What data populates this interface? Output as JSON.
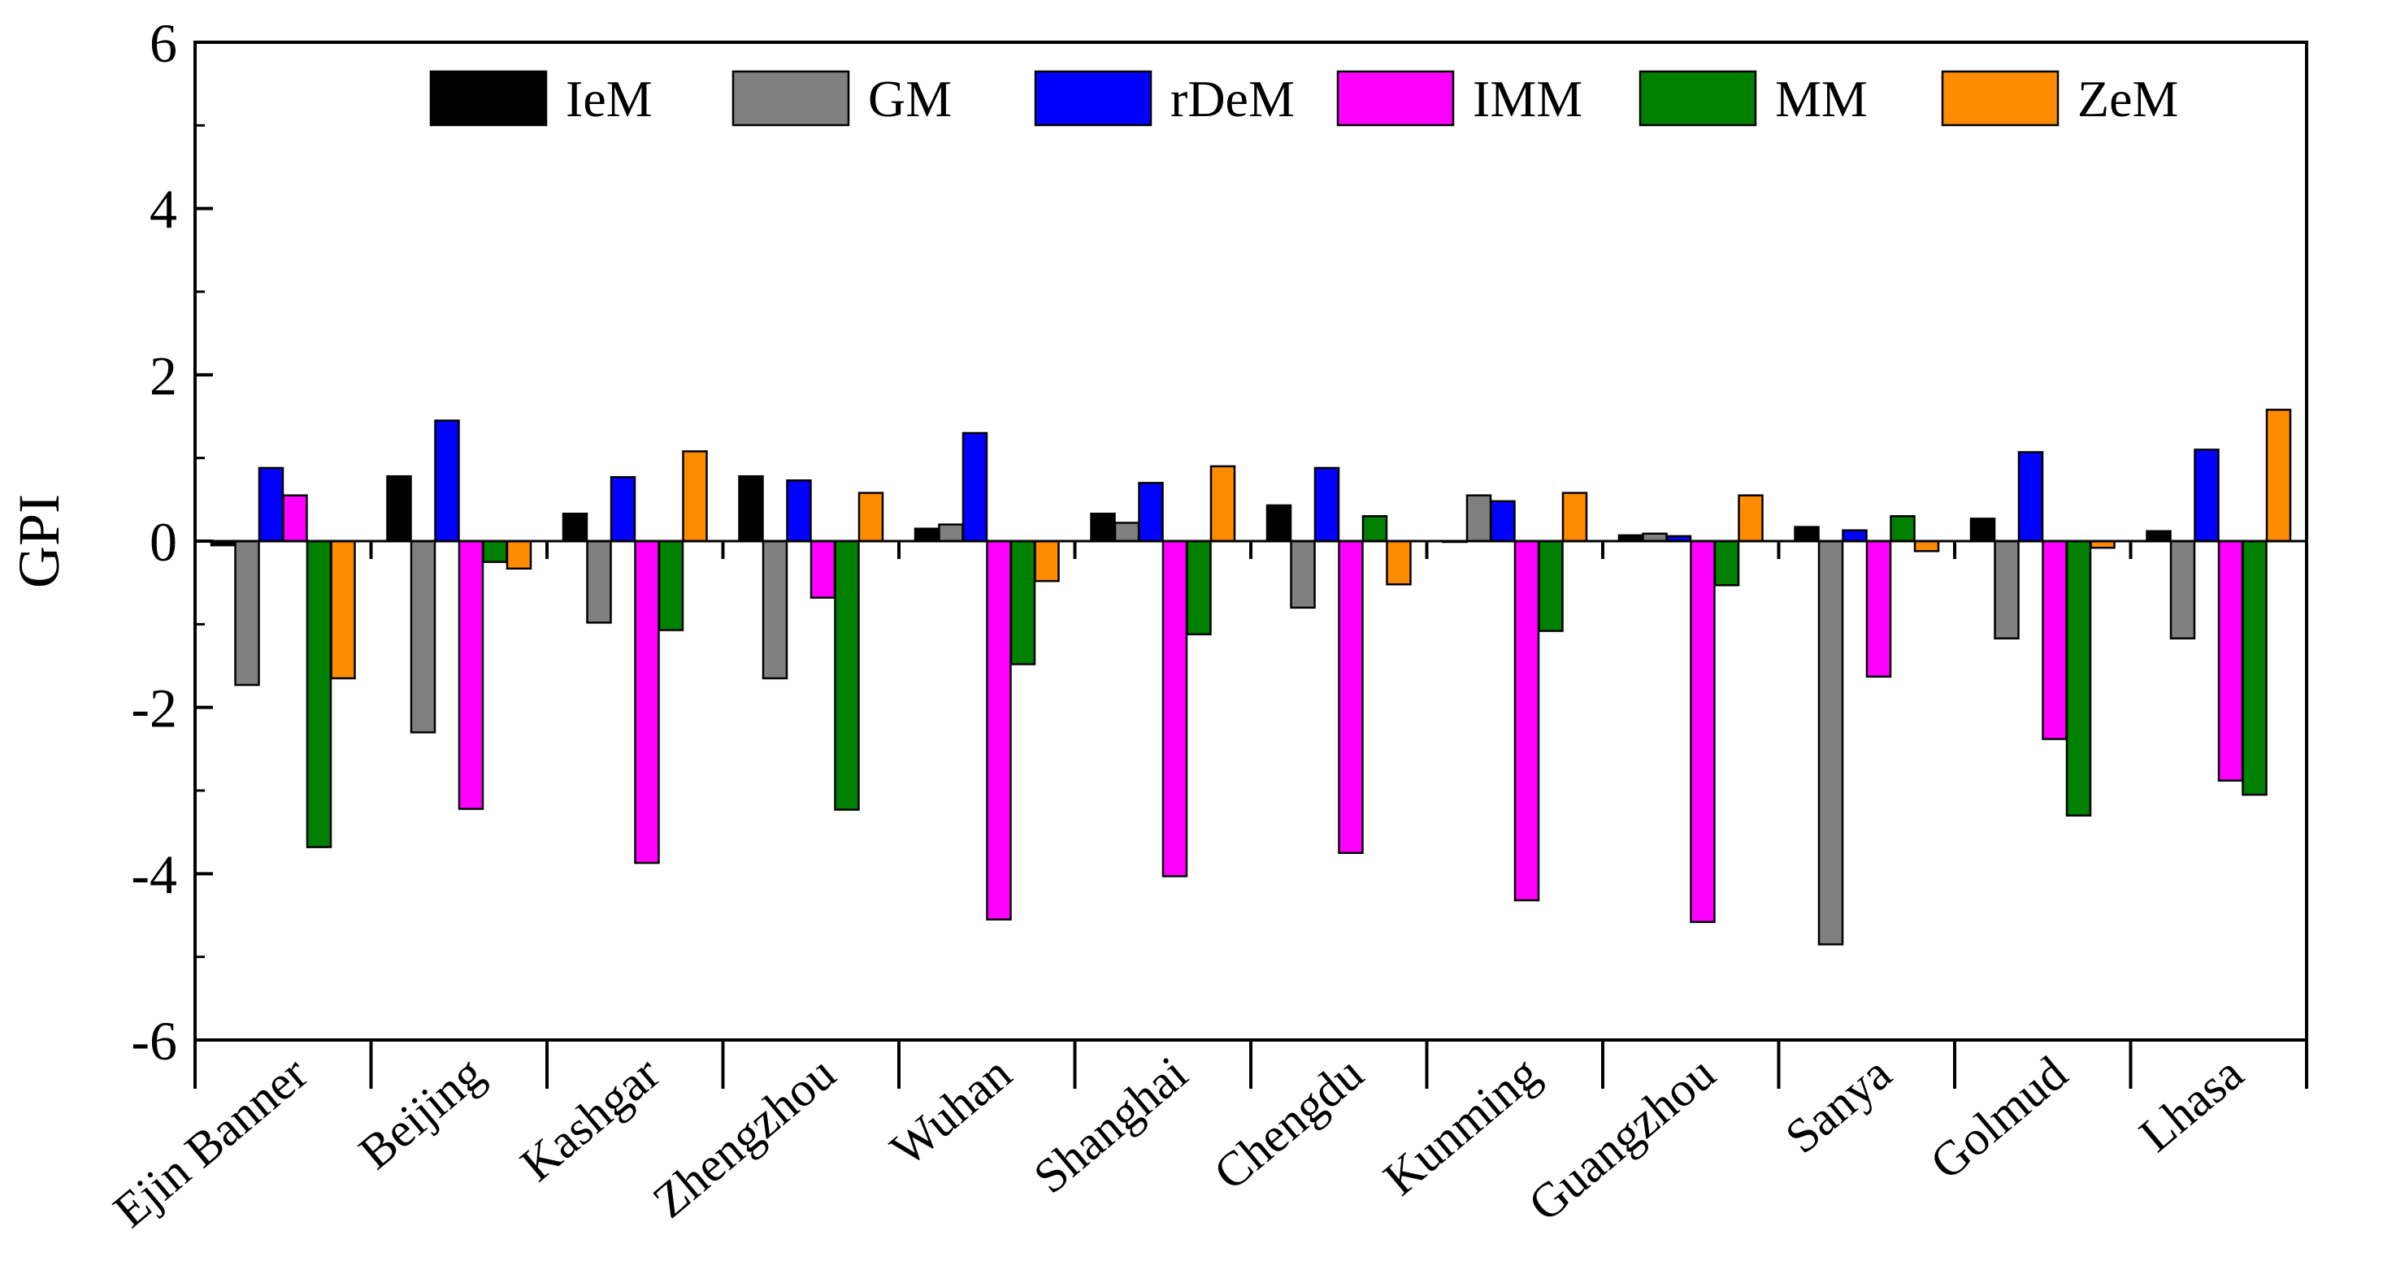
{
  "chart_data": {
    "type": "bar",
    "ylabel": "GPI",
    "ylim": [
      -6,
      6
    ],
    "yticks": [
      -6,
      -4,
      -2,
      0,
      2,
      4,
      6
    ],
    "ytick_labels": [
      "-6",
      "-4",
      "-2",
      "0",
      "2",
      "4",
      "6"
    ],
    "grid": false,
    "legend_position": "top",
    "categories": [
      "Ejin Banner",
      "Beijing",
      "Kashgar",
      "Zhengzhou",
      "Wuhan",
      "Shanghai",
      "Chengdu",
      "Kunming",
      "Guangzhou",
      "Sanya",
      "Golmud",
      "Lhasa"
    ],
    "series": [
      {
        "name": "IeM",
        "color": "#000000",
        "values": [
          -0.05,
          0.78,
          0.33,
          0.78,
          0.15,
          0.33,
          0.43,
          0.0,
          0.07,
          0.17,
          0.27,
          0.12
        ]
      },
      {
        "name": "GM",
        "color": "#808080",
        "values": [
          -1.73,
          -2.3,
          -0.98,
          -1.65,
          0.2,
          0.22,
          -0.8,
          0.55,
          0.09,
          -4.85,
          -1.17,
          -1.17
        ]
      },
      {
        "name": "rDeM",
        "color": "#0000ff",
        "values": [
          0.88,
          1.45,
          0.77,
          0.73,
          1.3,
          0.7,
          0.88,
          0.48,
          0.06,
          0.13,
          1.07,
          1.1
        ]
      },
      {
        "name": "IMM",
        "color": "#ff00ff",
        "values": [
          0.55,
          -3.22,
          -3.87,
          -0.68,
          -4.55,
          -4.03,
          -3.75,
          -4.32,
          -4.58,
          -1.63,
          -2.38,
          -2.88
        ]
      },
      {
        "name": "MM",
        "color": "#008000",
        "values": [
          -3.68,
          -0.25,
          -1.07,
          -3.23,
          -1.48,
          -1.12,
          0.3,
          -1.08,
          -0.53,
          0.3,
          -3.3,
          -3.05
        ]
      },
      {
        "name": "ZeM",
        "color": "#ff8c00",
        "values": [
          -1.65,
          -0.33,
          1.08,
          0.58,
          -0.48,
          0.9,
          -0.52,
          0.58,
          0.55,
          -0.12,
          -0.08,
          1.58
        ]
      }
    ]
  }
}
